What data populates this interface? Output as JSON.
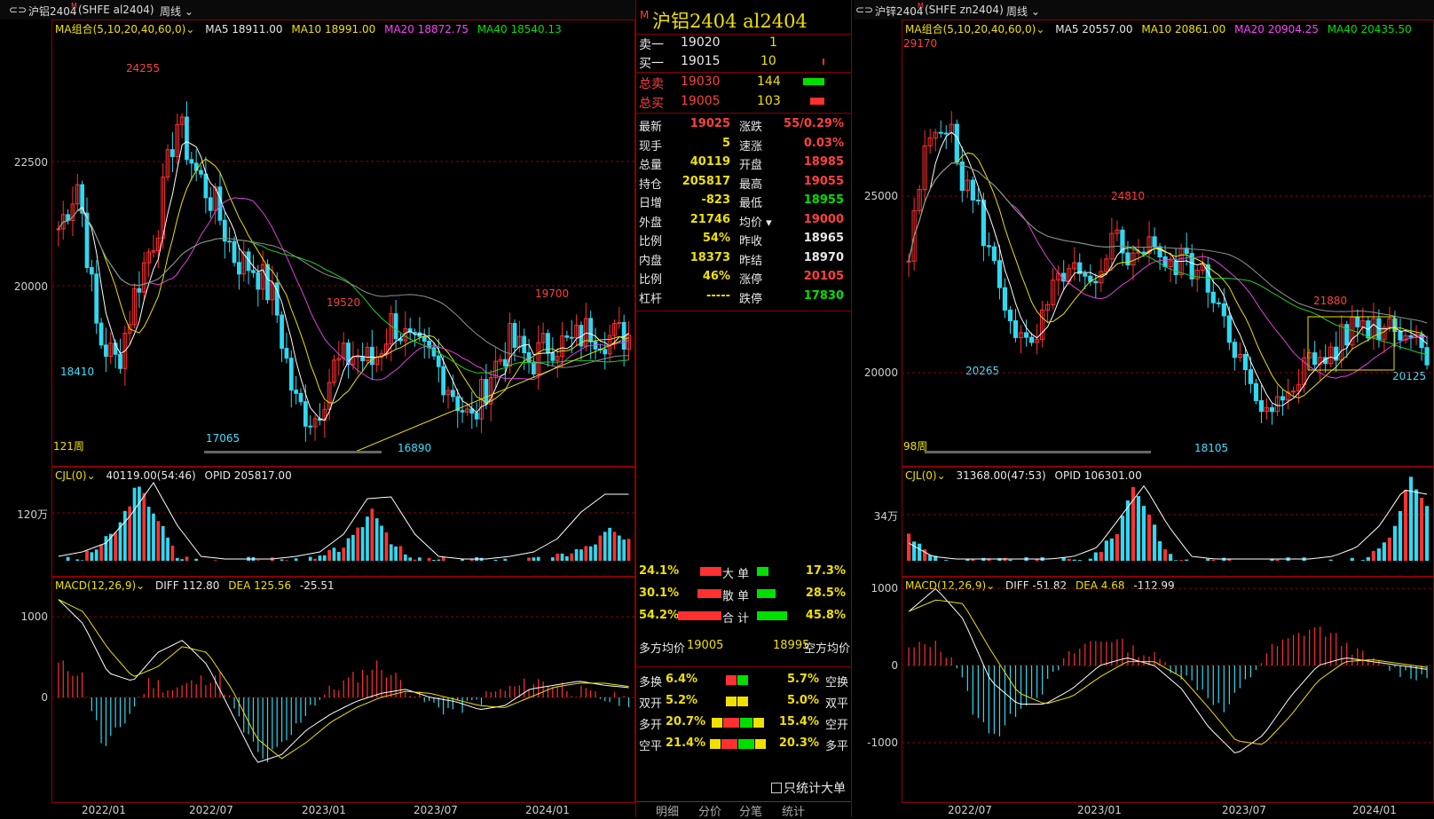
{
  "left_header": {
    "nav": "⊂⊃",
    "title": "沪铝2404",
    "sup": "M",
    "code": "(SHFE al2404)",
    "period": "周线"
  },
  "right_header": {
    "nav": "⊂⊃",
    "title": "沪锌2404",
    "sup": "M",
    "code": "(SHFE zn2404)",
    "period": "周线"
  },
  "left_chart": {
    "ma_name": "MA组合(5,10,20,40,60,0)",
    "ma5": "MA5 18911.00",
    "ma10": "MA10 18991.00",
    "ma20": "MA20 18872.75",
    "ma40": "MA40 18540.13",
    "y_ticks": [
      "22500",
      "20000"
    ],
    "annotations": [
      "24255",
      "18410",
      "17065",
      "19520",
      "16890",
      "19700"
    ],
    "bars_label": "121周",
    "vol_header": "CJL(0)",
    "vol_value": "40119.00(54:46)",
    "vol_opid": "OPID 205817.00",
    "vol_tick": "120万",
    "macd_header": "MACD(12,26,9)",
    "macd_diff": "DIFF 112.80",
    "macd_dea": "DEA 125.56",
    "macd_val": "-25.51",
    "macd_ticks": [
      "1000",
      "0"
    ],
    "x_ticks": [
      "2022/01",
      "2022/07",
      "2023/01",
      "2023/07",
      "2024/01"
    ]
  },
  "right_chart": {
    "ma_name": "MA组合(5,10,20,40,60,0)",
    "ma5": "MA5 20557.00",
    "ma10": "MA10 20861.00",
    "ma20": "MA20 20904.25",
    "ma40": "MA40 20435.50",
    "y_ticks": [
      "25000",
      "20000"
    ],
    "annotations": [
      "29170",
      "24810",
      "20265",
      "21880",
      "20125",
      "18105"
    ],
    "bars_label": "98周",
    "vol_header": "CJL(0)",
    "vol_value": "31368.00(47:53)",
    "vol_opid": "OPID 106301.00",
    "vol_tick": "34万",
    "macd_header": "MACD(12,26,9)",
    "macd_diff": "DIFF -51.82",
    "macd_dea": "DEA 4.68",
    "macd_val": "-112.99",
    "macd_ticks": [
      "1000",
      "0",
      "-1000"
    ],
    "x_ticks": [
      "2022/07",
      "2023/01",
      "2023/07",
      "2024/01"
    ]
  },
  "quote": {
    "flag": "M",
    "title": "沪铝2404  al2404",
    "sell1": {
      "label": "卖一",
      "price": "19020",
      "vol": "1"
    },
    "buy1": {
      "label": "买一",
      "price": "19015",
      "vol": "10"
    },
    "total_sell": {
      "label": "总卖",
      "price": "19030",
      "vol": "144"
    },
    "total_buy": {
      "label": "总买",
      "price": "19005",
      "vol": "103"
    },
    "rows": [
      {
        "l1": "最新",
        "v1": "19025",
        "l2": "涨跌",
        "v2": "55/0.29%",
        "c1": "red",
        "c2": "red"
      },
      {
        "l1": "现手",
        "v1": "5",
        "l2": "速涨",
        "v2": "0.03%",
        "c1": "yellow",
        "c2": "red"
      },
      {
        "l1": "总量",
        "v1": "40119",
        "l2": "开盘",
        "v2": "18985",
        "c1": "yellow",
        "c2": "red"
      },
      {
        "l1": "持仓",
        "v1": "205817",
        "l2": "最高",
        "v2": "19055",
        "c1": "yellow",
        "c2": "red"
      },
      {
        "l1": "日增",
        "v1": "-823",
        "l2": "最低",
        "v2": "18955",
        "c1": "yellow",
        "c2": "green"
      },
      {
        "l1": "外盘",
        "v1": "21746",
        "l2": "均价",
        "v2": "19000",
        "c1": "yellow",
        "c2": "red"
      },
      {
        "l1": "比例",
        "v1": "54%",
        "l2": "昨收",
        "v2": "18965",
        "c1": "yellow",
        "c2": "white"
      },
      {
        "l1": "内盘",
        "v1": "18373",
        "l2": "昨结",
        "v2": "18970",
        "c1": "yellow",
        "c2": "white"
      },
      {
        "l1": "比例",
        "v1": "46%",
        "l2": "涨停",
        "v2": "20105",
        "c1": "yellow",
        "c2": "red"
      },
      {
        "l1": "杠杆",
        "v1": "-----",
        "l2": "跌停",
        "v2": "17830",
        "c1": "yellow",
        "c2": "green"
      }
    ],
    "big_order": {
      "left_pct": "24.1%",
      "label": "大 单",
      "right_pct": "17.3%",
      "left_frac": 0.45,
      "right_frac": 0.3
    },
    "retail_order": {
      "left_pct": "30.1%",
      "label": "散 单",
      "right_pct": "28.5%",
      "left_frac": 0.5,
      "right_frac": 0.5
    },
    "total_order": {
      "left_pct": "54.2%",
      "label": "合 计",
      "right_pct": "45.8%",
      "left_frac": 0.9,
      "right_frac": 0.8
    },
    "long_avg_label": "多方均价",
    "long_avg": "19005",
    "short_avg": "18995",
    "short_avg_label": "空方均价",
    "flows": [
      {
        "l": "多换",
        "lv": "6.4%",
        "r": "空换",
        "rv": "5.7%"
      },
      {
        "l": "双开",
        "lv": "5.2%",
        "r": "双平",
        "rv": "5.0%"
      },
      {
        "l": "多开",
        "lv": "20.7%",
        "r": "空开",
        "rv": "15.4%"
      },
      {
        "l": "空平",
        "lv": "21.4%",
        "r": "多平",
        "rv": "20.3%"
      }
    ],
    "checkbox_label": "只统计大单",
    "tabs": [
      "明细",
      "分价",
      "分笔",
      "统计"
    ]
  },
  "colors": {
    "up": "#ff3030",
    "down": "#30d8f0",
    "ma5": "#ffffff",
    "ma10": "#e8e000",
    "ma20": "#e040e0",
    "ma40": "#20d020",
    "ma60": "#909090",
    "grid": "#8a0000"
  }
}
